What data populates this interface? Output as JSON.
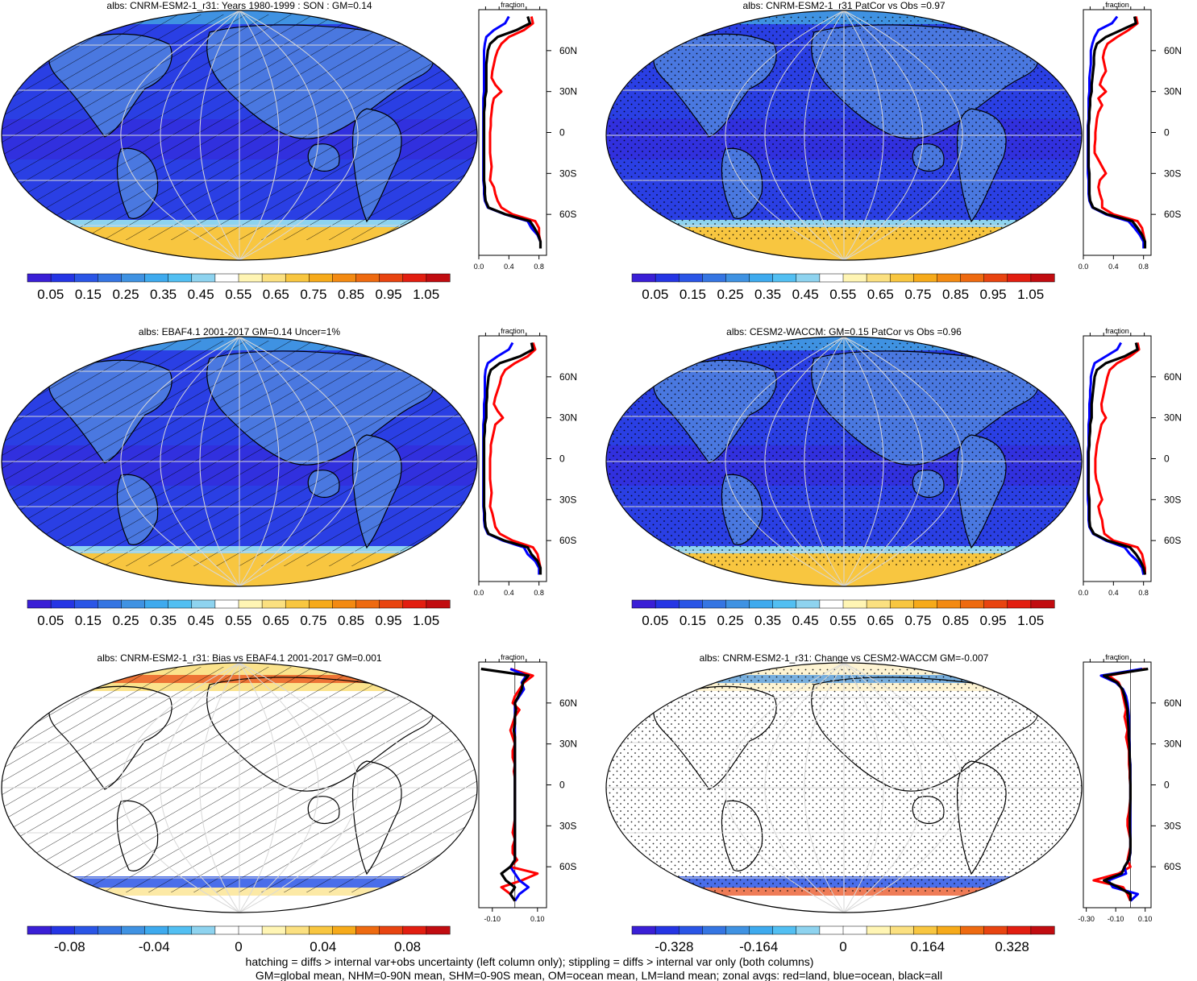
{
  "colors": {
    "abs_scale": [
      "#3a1fd6",
      "#2535e4",
      "#2a55e6",
      "#3575e2",
      "#3f92e2",
      "#3eaaee",
      "#52bff2",
      "#8ed3ef",
      "#ffffff",
      "#fff5b4",
      "#fbe080",
      "#f8c640",
      "#f6aa1a",
      "#f38a12",
      "#ee6a10",
      "#e84410",
      "#e21e10",
      "#c10c10"
    ],
    "diff_scale": [
      "#3a1fd6",
      "#2535e4",
      "#2a55e6",
      "#3575e2",
      "#3f92e2",
      "#3eaaee",
      "#52bff2",
      "#8ed3ef",
      "#ffffff",
      "#ffffff",
      "#fff5b4",
      "#fbe080",
      "#f8c640",
      "#f6aa1a",
      "#ee6a10",
      "#e84410",
      "#e21e10",
      "#c10c10"
    ],
    "land_line": "#ff0000",
    "ocean_line": "#0000ff",
    "all_line": "#000000"
  },
  "chart_data": [
    {
      "id": "p1",
      "type": "heatmap",
      "title": "albs: CNRM-ESM2-1_r31: Years 1980-1999 : SON : GM=0.14",
      "colorbar_labels": [
        "0.05",
        "0.15",
        "0.25",
        "0.35",
        "0.45",
        "0.55",
        "0.65",
        "0.75",
        "0.85",
        "0.95",
        "1.05"
      ],
      "colorbar_scale": "abs",
      "overlay": "hatch",
      "zonal": {
        "xlim": [
          0.0,
          0.9
        ],
        "xticks": [
          "0.0",
          "0.4",
          "0.8"
        ],
        "xlabel": "fraction",
        "yticks": [
          "60N",
          "30N",
          "0",
          "30S",
          "60S"
        ],
        "lat": [
          85,
          80,
          75,
          70,
          65,
          60,
          55,
          50,
          45,
          40,
          35,
          30,
          25,
          20,
          15,
          10,
          5,
          0,
          -5,
          -10,
          -15,
          -20,
          -25,
          -30,
          -35,
          -40,
          -45,
          -50,
          -55,
          -60,
          -65,
          -70,
          -75,
          -80,
          -85
        ],
        "land": [
          0.7,
          0.72,
          0.6,
          0.4,
          0.3,
          0.25,
          0.22,
          0.2,
          0.18,
          0.17,
          0.22,
          0.3,
          0.2,
          0.18,
          0.17,
          0.16,
          0.16,
          0.15,
          0.15,
          0.15,
          0.15,
          0.16,
          0.17,
          0.16,
          0.15,
          0.2,
          0.22,
          0.25,
          0.3,
          0.45,
          0.75,
          0.8,
          0.8,
          0.82,
          0.82
        ],
        "ocean": [
          0.4,
          0.35,
          0.2,
          0.1,
          0.08,
          0.07,
          0.07,
          0.07,
          0.07,
          0.07,
          0.07,
          0.07,
          0.06,
          0.06,
          0.06,
          0.06,
          0.06,
          0.06,
          0.06,
          0.06,
          0.06,
          0.06,
          0.06,
          0.06,
          0.06,
          0.07,
          0.07,
          0.08,
          0.12,
          0.35,
          0.65,
          0.7,
          0.78,
          0.82,
          0.82
        ],
        "all": [
          0.65,
          0.68,
          0.5,
          0.25,
          0.15,
          0.12,
          0.11,
          0.1,
          0.1,
          0.1,
          0.1,
          0.1,
          0.08,
          0.08,
          0.07,
          0.07,
          0.07,
          0.07,
          0.07,
          0.07,
          0.07,
          0.07,
          0.07,
          0.07,
          0.07,
          0.08,
          0.08,
          0.09,
          0.13,
          0.36,
          0.68,
          0.74,
          0.79,
          0.82,
          0.82
        ]
      }
    },
    {
      "id": "p2",
      "type": "heatmap",
      "title": "albs: CNRM-ESM2-1_r31 PatCor vs Obs =0.97",
      "colorbar_labels": [
        "0.05",
        "0.15",
        "0.25",
        "0.35",
        "0.45",
        "0.55",
        "0.65",
        "0.75",
        "0.85",
        "0.95",
        "1.05"
      ],
      "colorbar_scale": "abs",
      "overlay": "stipple",
      "zonal": {
        "xlim": [
          0.0,
          0.9
        ],
        "xticks": [
          "0.0",
          "0.4",
          "0.8"
        ],
        "xlabel": "fraction",
        "yticks": [
          "60N",
          "30N",
          "0",
          "30S",
          "60S"
        ],
        "lat": [
          85,
          80,
          75,
          70,
          65,
          60,
          55,
          50,
          45,
          40,
          35,
          30,
          25,
          20,
          15,
          10,
          5,
          0,
          -5,
          -10,
          -15,
          -20,
          -25,
          -30,
          -35,
          -40,
          -45,
          -50,
          -55,
          -60,
          -65,
          -70,
          -75,
          -80,
          -85
        ],
        "land": [
          0.7,
          0.72,
          0.6,
          0.45,
          0.32,
          0.28,
          0.26,
          0.28,
          0.3,
          0.25,
          0.22,
          0.3,
          0.2,
          0.25,
          0.2,
          0.18,
          0.17,
          0.16,
          0.16,
          0.15,
          0.15,
          0.2,
          0.25,
          0.3,
          0.22,
          0.2,
          0.22,
          0.25,
          0.25,
          0.4,
          0.72,
          0.78,
          0.8,
          0.82,
          0.82
        ],
        "ocean": [
          0.45,
          0.38,
          0.2,
          0.15,
          0.12,
          0.1,
          0.1,
          0.1,
          0.09,
          0.08,
          0.08,
          0.08,
          0.07,
          0.07,
          0.07,
          0.07,
          0.06,
          0.06,
          0.06,
          0.06,
          0.06,
          0.06,
          0.06,
          0.06,
          0.07,
          0.07,
          0.07,
          0.08,
          0.12,
          0.3,
          0.6,
          0.68,
          0.75,
          0.8,
          0.8
        ],
        "all": [
          0.68,
          0.7,
          0.5,
          0.3,
          0.18,
          0.15,
          0.14,
          0.14,
          0.13,
          0.12,
          0.11,
          0.11,
          0.09,
          0.09,
          0.08,
          0.08,
          0.07,
          0.07,
          0.07,
          0.07,
          0.07,
          0.07,
          0.07,
          0.08,
          0.08,
          0.08,
          0.08,
          0.09,
          0.13,
          0.32,
          0.65,
          0.72,
          0.78,
          0.82,
          0.82
        ]
      }
    },
    {
      "id": "p3",
      "type": "heatmap",
      "title": "albs: EBAF4.1 2001-2017 GM=0.14 Uncer=1%",
      "colorbar_labels": [
        "0.05",
        "0.15",
        "0.25",
        "0.35",
        "0.45",
        "0.55",
        "0.65",
        "0.75",
        "0.85",
        "0.95",
        "1.05"
      ],
      "colorbar_scale": "abs",
      "overlay": "hatch",
      "zonal": {
        "xlim": [
          0.0,
          0.9
        ],
        "xticks": [
          "0.0",
          "0.4",
          "0.8"
        ],
        "xlabel": "fraction",
        "yticks": [
          "60N",
          "30N",
          "0",
          "30S",
          "60S"
        ],
        "lat": [
          85,
          80,
          75,
          70,
          65,
          60,
          55,
          50,
          45,
          40,
          35,
          30,
          25,
          20,
          15,
          10,
          5,
          0,
          -5,
          -10,
          -15,
          -20,
          -25,
          -30,
          -35,
          -40,
          -45,
          -50,
          -55,
          -60,
          -65,
          -70,
          -75,
          -80,
          -85
        ],
        "land": [
          0.72,
          0.75,
          0.65,
          0.48,
          0.35,
          0.3,
          0.28,
          0.25,
          0.22,
          0.2,
          0.25,
          0.32,
          0.22,
          0.2,
          0.18,
          0.16,
          0.16,
          0.15,
          0.15,
          0.15,
          0.15,
          0.16,
          0.17,
          0.16,
          0.15,
          0.18,
          0.2,
          0.22,
          0.28,
          0.45,
          0.72,
          0.78,
          0.8,
          0.82,
          0.82
        ],
        "ocean": [
          0.45,
          0.4,
          0.25,
          0.12,
          0.09,
          0.08,
          0.08,
          0.08,
          0.08,
          0.07,
          0.07,
          0.07,
          0.06,
          0.06,
          0.06,
          0.06,
          0.06,
          0.06,
          0.06,
          0.06,
          0.06,
          0.06,
          0.06,
          0.06,
          0.06,
          0.07,
          0.07,
          0.08,
          0.12,
          0.32,
          0.6,
          0.65,
          0.75,
          0.8,
          0.8
        ],
        "all": [
          0.7,
          0.72,
          0.55,
          0.28,
          0.16,
          0.13,
          0.12,
          0.11,
          0.11,
          0.1,
          0.1,
          0.1,
          0.08,
          0.08,
          0.07,
          0.07,
          0.07,
          0.07,
          0.07,
          0.07,
          0.07,
          0.07,
          0.07,
          0.07,
          0.07,
          0.08,
          0.08,
          0.09,
          0.13,
          0.34,
          0.65,
          0.7,
          0.78,
          0.82,
          0.82
        ]
      }
    },
    {
      "id": "p4",
      "type": "heatmap",
      "title": "albs: CESM2-WACCM: GM=0.15 PatCor vs Obs =0.96",
      "colorbar_labels": [
        "0.05",
        "0.15",
        "0.25",
        "0.35",
        "0.45",
        "0.55",
        "0.65",
        "0.75",
        "0.85",
        "0.95",
        "1.05"
      ],
      "colorbar_scale": "abs",
      "overlay": "stipple",
      "zonal": {
        "xlim": [
          0.0,
          0.9
        ],
        "xticks": [
          "0.0",
          "0.4",
          "0.8"
        ],
        "xlabel": "fraction",
        "yticks": [
          "60N",
          "30N",
          "0",
          "30S",
          "60S"
        ],
        "lat": [
          85,
          80,
          75,
          70,
          65,
          60,
          55,
          50,
          45,
          40,
          35,
          30,
          25,
          20,
          15,
          10,
          5,
          0,
          -5,
          -10,
          -15,
          -20,
          -25,
          -30,
          -35,
          -40,
          -45,
          -50,
          -55,
          -60,
          -65,
          -70,
          -75,
          -80,
          -85
        ],
        "land": [
          0.72,
          0.74,
          0.62,
          0.45,
          0.35,
          0.32,
          0.3,
          0.28,
          0.26,
          0.24,
          0.25,
          0.3,
          0.24,
          0.22,
          0.2,
          0.18,
          0.17,
          0.16,
          0.16,
          0.16,
          0.17,
          0.2,
          0.22,
          0.25,
          0.2,
          0.22,
          0.25,
          0.26,
          0.28,
          0.4,
          0.72,
          0.78,
          0.8,
          0.82,
          0.82
        ],
        "ocean": [
          0.5,
          0.45,
          0.3,
          0.15,
          0.12,
          0.1,
          0.1,
          0.09,
          0.09,
          0.08,
          0.08,
          0.08,
          0.07,
          0.07,
          0.07,
          0.07,
          0.06,
          0.06,
          0.06,
          0.06,
          0.06,
          0.06,
          0.06,
          0.06,
          0.07,
          0.07,
          0.07,
          0.08,
          0.13,
          0.3,
          0.55,
          0.62,
          0.72,
          0.78,
          0.8
        ],
        "all": [
          0.7,
          0.72,
          0.55,
          0.3,
          0.18,
          0.15,
          0.14,
          0.13,
          0.12,
          0.11,
          0.11,
          0.11,
          0.09,
          0.09,
          0.08,
          0.08,
          0.07,
          0.07,
          0.07,
          0.07,
          0.07,
          0.07,
          0.07,
          0.08,
          0.08,
          0.08,
          0.08,
          0.09,
          0.14,
          0.32,
          0.62,
          0.7,
          0.76,
          0.8,
          0.82
        ]
      }
    },
    {
      "id": "p5",
      "type": "heatmap",
      "title": "albs: CNRM-ESM2-1_r31: Bias vs EBAF4.1 2001-2017  GM=0.001",
      "colorbar_labels": [
        "-0.08",
        "-0.04",
        "0",
        "0.04",
        "0.08"
      ],
      "colorbar_scale": "diff",
      "overlay": "hatch",
      "zonal": {
        "xlim": [
          -0.16,
          0.14
        ],
        "xticks": [
          "-0.10",
          "0.10"
        ],
        "xlabel": "fraction",
        "yticks": [
          "60N",
          "30N",
          "0",
          "30S",
          "60S"
        ],
        "lat": [
          85,
          80,
          75,
          70,
          65,
          60,
          55,
          50,
          45,
          40,
          35,
          30,
          25,
          20,
          15,
          10,
          5,
          0,
          -5,
          -10,
          -15,
          -20,
          -25,
          -30,
          -35,
          -40,
          -45,
          -50,
          -55,
          -60,
          -65,
          -70,
          -75,
          -80,
          -85
        ],
        "land": [
          -0.02,
          0.08,
          0.04,
          0.02,
          0.0,
          -0.01,
          0.02,
          0.0,
          -0.01,
          -0.02,
          -0.01,
          0.0,
          -0.01,
          -0.01,
          0.0,
          -0.005,
          0.0,
          0.0,
          0.0,
          0.0,
          0.0,
          0.0,
          0.0,
          -0.005,
          -0.01,
          0.0,
          -0.01,
          -0.01,
          0.01,
          -0.02,
          0.1,
          0.03,
          -0.06,
          -0.02,
          0.0
        ],
        "ocean": [
          -0.02,
          0.05,
          0.03,
          0.04,
          0.02,
          0.0,
          0.0,
          0.0,
          0.0,
          0.0,
          0.0,
          0.0,
          0.0,
          0.0,
          0.0,
          0.0,
          0.0,
          0.0,
          0.0,
          0.0,
          0.0,
          0.0,
          0.0,
          0.0,
          0.0,
          0.0,
          0.0,
          0.0,
          0.0,
          -0.02,
          0.0,
          0.02,
          0.06,
          0.02,
          0.0
        ],
        "all": [
          -0.15,
          0.06,
          0.035,
          0.03,
          0.015,
          0.0,
          0.005,
          0.0,
          0.0,
          -0.005,
          0.0,
          0.0,
          0.0,
          0.0,
          0.0,
          0.0,
          0.0,
          0.0,
          0.0,
          0.0,
          0.0,
          0.0,
          0.0,
          0.0,
          0.0,
          0.0,
          0.0,
          0.0,
          0.0,
          -0.02,
          -0.06,
          -0.04,
          0.0,
          -0.02,
          0.0
        ]
      }
    },
    {
      "id": "p6",
      "type": "heatmap",
      "title": "albs: CNRM-ESM2-1_r31: Change vs CESM2-WACCM GM=-0.007",
      "colorbar_labels": [
        "-0.328",
        "-0.164",
        "0",
        "0.164",
        "0.328"
      ],
      "colorbar_scale": "diff",
      "overlay": "stipple",
      "zonal": {
        "xlim": [
          -0.32,
          0.14
        ],
        "xticks": [
          "-0.30",
          "-0.10",
          "0.10"
        ],
        "xlabel": "fraction",
        "yticks": [
          "60N",
          "30N",
          "0",
          "30S",
          "60S"
        ],
        "lat": [
          85,
          80,
          75,
          70,
          65,
          60,
          55,
          50,
          45,
          40,
          35,
          30,
          25,
          20,
          15,
          10,
          5,
          0,
          -5,
          -10,
          -15,
          -20,
          -25,
          -30,
          -35,
          -40,
          -45,
          -50,
          -55,
          -60,
          -65,
          -70,
          -75,
          -80,
          -85
        ],
        "land": [
          0.1,
          -0.15,
          -0.08,
          -0.06,
          -0.05,
          -0.04,
          -0.03,
          -0.04,
          -0.03,
          -0.02,
          -0.03,
          -0.02,
          -0.01,
          -0.01,
          -0.01,
          -0.005,
          -0.005,
          0.0,
          0.0,
          0.0,
          -0.005,
          -0.01,
          -0.02,
          -0.02,
          -0.01,
          0.0,
          0.0,
          -0.01,
          -0.02,
          0.0,
          -0.08,
          -0.25,
          -0.05,
          -0.02,
          0.0
        ],
        "ocean": [
          0.08,
          -0.2,
          -0.1,
          -0.05,
          -0.03,
          -0.02,
          -0.015,
          -0.01,
          -0.01,
          -0.01,
          -0.01,
          -0.005,
          -0.005,
          -0.005,
          0.0,
          0.0,
          0.0,
          0.0,
          0.0,
          0.0,
          0.0,
          0.0,
          0.0,
          0.0,
          0.0,
          0.0,
          0.0,
          0.0,
          -0.01,
          -0.04,
          -0.03,
          -0.15,
          -0.12,
          0.05,
          0.0
        ],
        "all": [
          0.12,
          -0.18,
          -0.09,
          -0.055,
          -0.04,
          -0.03,
          -0.02,
          -0.02,
          -0.015,
          -0.012,
          -0.012,
          -0.008,
          -0.006,
          -0.005,
          -0.003,
          -0.002,
          -0.002,
          0.0,
          0.0,
          0.0,
          -0.002,
          -0.003,
          -0.004,
          -0.004,
          -0.003,
          0.0,
          0.0,
          -0.002,
          -0.012,
          -0.04,
          -0.06,
          -0.18,
          -0.08,
          0.0,
          0.0
        ]
      }
    }
  ],
  "footer": {
    "line1": "hatching = diffs > internal var+obs uncertainty (left column only); stippling = diffs > internal var only (both columns)",
    "line2": "GM=global mean, NHM=0-90N mean, SHM=0-90S mean, OM=ocean mean, LM=land mean; zonal avgs: red=land, blue=ocean, black=all"
  }
}
